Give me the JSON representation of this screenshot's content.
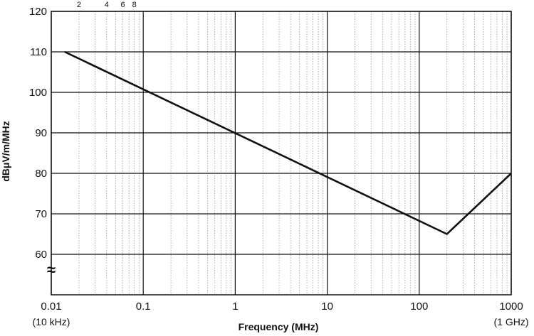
{
  "chart_data": {
    "type": "line",
    "title": "",
    "xlabel": "Frequency  (MHz)",
    "ylabel": "dBμV/m/MHz",
    "x_scale": "log",
    "xlim": [
      0.01,
      1000
    ],
    "ylim": [
      50,
      120
    ],
    "grid": true,
    "x_ticks": [
      {
        "value": 0.01,
        "label": "0.01",
        "sub": "(10 kHz)"
      },
      {
        "value": 0.1,
        "label": "0.1",
        "sub": ""
      },
      {
        "value": 1,
        "label": "1",
        "sub": ""
      },
      {
        "value": 10,
        "label": "10",
        "sub": ""
      },
      {
        "value": 100,
        "label": "100",
        "sub": ""
      },
      {
        "value": 1000,
        "label": "1000",
        "sub": "(1 GHz)"
      }
    ],
    "minor_tick_labels": [
      {
        "value": 0.02,
        "label": "2"
      },
      {
        "value": 0.04,
        "label": "4"
      },
      {
        "value": 0.06,
        "label": "6"
      },
      {
        "value": 0.08,
        "label": "8"
      }
    ],
    "y_ticks": [
      60,
      70,
      80,
      90,
      100,
      110,
      120
    ],
    "axis_break_symbol": "≈",
    "series": [
      {
        "x": [
          0.014,
          200,
          1000
        ],
        "y": [
          110,
          65,
          80
        ]
      }
    ]
  }
}
